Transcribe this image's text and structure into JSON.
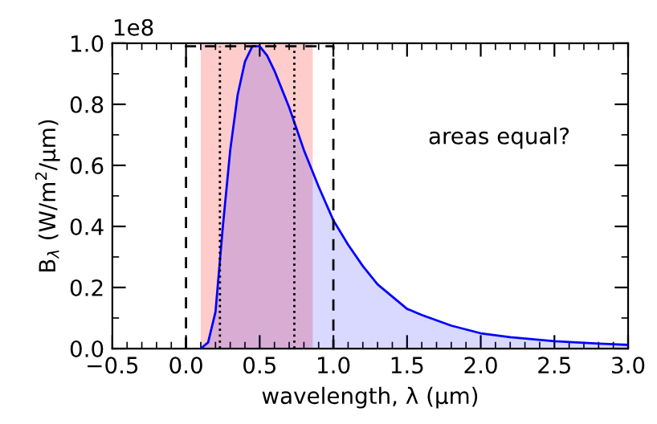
{
  "chart_data": {
    "type": "area",
    "xlabel": "wavelength, λ (μm)",
    "ylabel": "B$_{λ}$ (W/m$^{2}$/μm)",
    "xlim": [
      -0.5,
      3.0
    ],
    "xticks": [
      {
        "value": -0.5,
        "label": "−0.5"
      },
      {
        "value": 0,
        "label": "0.0"
      },
      0.5,
      {
        "value": 1,
        "label": "1.0"
      },
      1.5,
      {
        "value": 2,
        "label": "2.0"
      },
      2.5,
      {
        "value": 3,
        "label": "3.0"
      }
    ],
    "ylim": [
      0.0,
      1.0
    ],
    "yticks": [
      {
        "value": 0,
        "label": "0.0"
      },
      0.2,
      0.4,
      0.6,
      0.8,
      {
        "value": 1,
        "label": "1.0"
      }
    ],
    "grid": false,
    "annotations": [
      "1e8",
      "areas equal?"
    ],
    "bands": [
      {
        "axis": "x",
        "from": 0.1,
        "to": 0.86,
        "color": "#ff9999"
      }
    ],
    "series": [
      {
        "color": "#0000ff",
        "x": [
          0.1,
          0.15,
          0.2,
          0.25,
          0.3,
          0.35,
          0.4,
          0.45,
          0.5,
          0.55,
          0.6,
          0.65,
          0.7,
          0.75,
          0.8,
          0.85,
          0.9,
          1.0,
          1.1,
          1.2,
          1.3,
          1.4,
          1.5,
          1.6,
          1.8,
          2.0,
          2.2,
          2.5,
          2.8,
          3.0
        ],
        "values": [
          0.0,
          0.02,
          0.12,
          0.4,
          0.65,
          0.83,
          0.94,
          0.99,
          0.99,
          0.96,
          0.91,
          0.85,
          0.79,
          0.72,
          0.65,
          0.59,
          0.53,
          0.42,
          0.34,
          0.27,
          0.21,
          0.17,
          0.13,
          0.11,
          0.075,
          0.05,
          0.037,
          0.024,
          0.016,
          0.012
        ]
      },
      {
        "type": "line",
        "color": "#000000",
        "line_style": "dashed",
        "x": [
          0.0,
          0.0,
          1.0,
          1.0
        ],
        "values": [
          0.0,
          0.99,
          0.99,
          0.0
        ]
      },
      {
        "type": "line",
        "color": "#000000",
        "line_style": "dotted",
        "x": [
          0.23,
          0.23
        ],
        "values": [
          0.0,
          0.99
        ]
      },
      {
        "type": "line",
        "color": "#000000",
        "line_style": "dotted",
        "x": [
          0.735,
          0.735
        ],
        "values": [
          0.0,
          0.99
        ]
      }
    ]
  }
}
